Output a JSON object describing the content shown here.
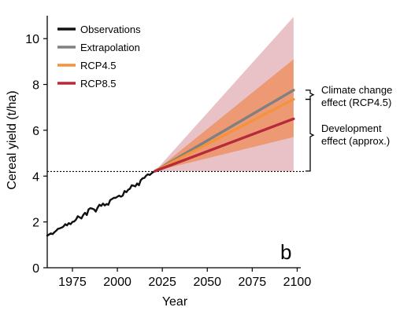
{
  "chart_data": {
    "type": "line",
    "panel_label": "b",
    "xlabel": "Year",
    "ylabel": "Cereal yield (t/ha)",
    "xlim": [
      1961,
      2102
    ],
    "ylim": [
      0,
      11
    ],
    "x_ticks": [
      1975,
      2000,
      2025,
      2050,
      2075,
      2100
    ],
    "y_ticks": [
      0,
      2,
      4,
      6,
      8,
      10
    ],
    "grid": false,
    "legend_position": "top-left",
    "reference_line": {
      "y": 4.2,
      "style": "dotted"
    },
    "series": [
      {
        "name": "Observations",
        "color": "#111111",
        "x": [
          1961,
          1962,
          1963,
          1964,
          1965,
          1966,
          1967,
          1968,
          1969,
          1970,
          1971,
          1972,
          1973,
          1974,
          1975,
          1976,
          1977,
          1978,
          1979,
          1980,
          1981,
          1982,
          1983,
          1984,
          1985,
          1986,
          1987,
          1988,
          1989,
          1990,
          1991,
          1992,
          1993,
          1994,
          1995,
          1996,
          1997,
          1998,
          1999,
          2000,
          2001,
          2002,
          2003,
          2004,
          2005,
          2006,
          2007,
          2008,
          2009,
          2010,
          2011,
          2012,
          2013,
          2014,
          2015,
          2016,
          2017,
          2018,
          2019,
          2020,
          2021
        ],
        "values": [
          1.4,
          1.45,
          1.5,
          1.47,
          1.55,
          1.62,
          1.7,
          1.72,
          1.75,
          1.8,
          1.9,
          1.85,
          1.95,
          1.9,
          2.0,
          2.02,
          2.1,
          2.25,
          2.2,
          2.15,
          2.3,
          2.4,
          2.3,
          2.55,
          2.6,
          2.58,
          2.55,
          2.45,
          2.62,
          2.75,
          2.7,
          2.8,
          2.72,
          2.78,
          2.75,
          2.95,
          3.0,
          3.05,
          3.05,
          3.1,
          3.15,
          3.1,
          3.15,
          3.35,
          3.3,
          3.4,
          3.45,
          3.6,
          3.58,
          3.55,
          3.68,
          3.6,
          3.82,
          3.9,
          3.92,
          4.02,
          4.08,
          4.05,
          4.12,
          4.18,
          4.22
        ]
      },
      {
        "name": "Extrapolation",
        "color": "#808080",
        "x": [
          2021,
          2098
        ],
        "values": [
          4.22,
          7.75
        ]
      },
      {
        "name": "RCP4.5",
        "color": "#f5923e",
        "x": [
          2021,
          2098
        ],
        "values": [
          4.22,
          7.35
        ]
      },
      {
        "name": "RCP8.5",
        "color": "#b72a3a",
        "x": [
          2021,
          2098
        ],
        "values": [
          4.22,
          6.5
        ]
      }
    ],
    "bands": [
      {
        "series": "RCP8.5",
        "color": "#c0505f",
        "opacity": 0.35,
        "x": [
          2021,
          2098
        ],
        "lower": [
          4.22,
          4.22
        ],
        "upper": [
          4.22,
          10.95
        ]
      },
      {
        "series": "RCP4.5",
        "color": "#f07a30",
        "opacity": 0.55,
        "x": [
          2021,
          2098
        ],
        "lower": [
          4.22,
          5.7
        ],
        "upper": [
          4.22,
          9.1
        ]
      }
    ],
    "annotations": {
      "climate": {
        "lines": [
          "Climate change",
          "effect (RCP4.5)"
        ],
        "y_top": 7.75,
        "y_bottom": 7.35
      },
      "development": {
        "lines": [
          "Development",
          "effect (approx.)"
        ],
        "y_top": 7.35,
        "y_bottom": 4.22
      }
    }
  }
}
